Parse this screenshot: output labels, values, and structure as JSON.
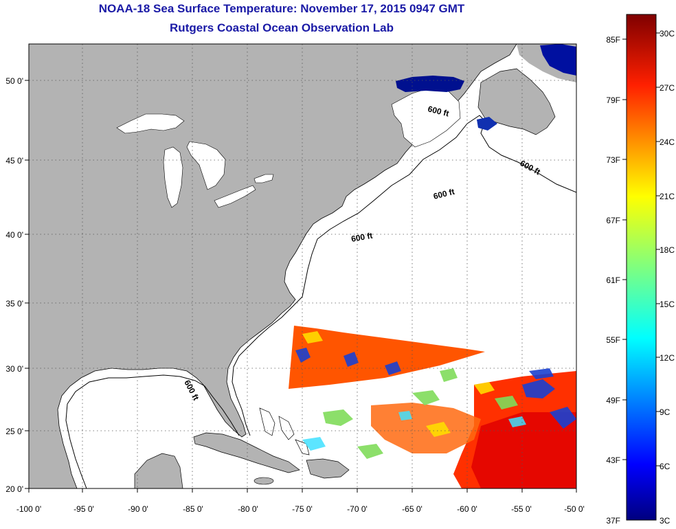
{
  "title": "NOAA-18 Sea Surface Temperature:  November 17, 2015 0947 GMT",
  "subtitle": "Rutgers Coastal Ocean Observation Lab",
  "map": {
    "lon_ticks": [
      "-100 0'",
      "-95 0'",
      "-90 0'",
      "-85 0'",
      "-80 0'",
      "-75 0'",
      "-70 0'",
      "-65 0'",
      "-60 0'",
      "-55 0'",
      "-50 0'"
    ],
    "lat_ticks": [
      "20 0'",
      "25 0'",
      "30 0'",
      "35 0'",
      "40 0'",
      "45 0'",
      "50 0'"
    ],
    "contour_labels": [
      "600 ft",
      "600 ft",
      "600 ft",
      "600 ft",
      "600 ft"
    ],
    "land_color": "#b3b3b3",
    "ocean_color": "#ffffff"
  },
  "colorbar": {
    "f_labels": [
      "85F",
      "79F",
      "73F",
      "67F",
      "61F",
      "55F",
      "49F",
      "43F",
      "37F"
    ],
    "c_labels": [
      "30C",
      "27C",
      "24C",
      "21C",
      "18C",
      "15C",
      "12C",
      "9C",
      "6C",
      "3C"
    ],
    "colormap": "jet",
    "colors": [
      "#00007f",
      "#0000ff",
      "#007fff",
      "#00ffff",
      "#7fff7f",
      "#ffff00",
      "#ff7f00",
      "#ff0000",
      "#7f0000"
    ]
  }
}
